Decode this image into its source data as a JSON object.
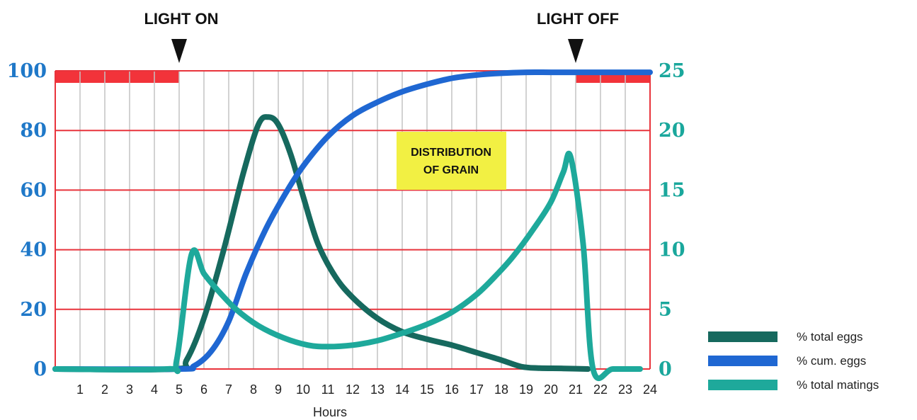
{
  "chart_data": {
    "type": "line",
    "title": "",
    "xlabel": "Hours",
    "ylabel_left": "",
    "ylabel_right": "",
    "x_range": [
      0,
      24
    ],
    "x_ticks": [
      "1",
      "2",
      "3",
      "4",
      "5",
      "6",
      "7",
      "8",
      "9",
      "10",
      "11",
      "12",
      "13",
      "14",
      "15",
      "16",
      "17",
      "18",
      "19",
      "20",
      "21",
      "22",
      "23",
      "24"
    ],
    "ylim_left": [
      0,
      100
    ],
    "yticks_left": [
      "0",
      "20",
      "40",
      "60",
      "80",
      "100"
    ],
    "ylim_right": [
      0,
      25
    ],
    "yticks_right": [
      "0",
      "5",
      "10",
      "15",
      "20",
      "25"
    ],
    "grid": true,
    "legend_position": "bottom-right",
    "markers": [
      {
        "label": "LIGHT ON",
        "x": 5
      },
      {
        "label": "LIGHT OFF",
        "x": 21
      }
    ],
    "dark_periods": [
      [
        0,
        5
      ],
      [
        21,
        24
      ]
    ],
    "annotation": {
      "lines": [
        "DISTRIBUTION",
        "OF GRAIN"
      ],
      "x_center": 15.3,
      "y_center": 68
    },
    "series": [
      {
        "name": "% total eggs",
        "color": "#16695e",
        "points": [
          [
            0,
            0
          ],
          [
            4.8,
            0
          ],
          [
            5.3,
            3
          ],
          [
            6,
            17
          ],
          [
            6.8,
            40
          ],
          [
            7.6,
            66
          ],
          [
            8.2,
            82
          ],
          [
            8.6,
            84.5
          ],
          [
            9,
            82
          ],
          [
            9.5,
            72
          ],
          [
            10,
            58
          ],
          [
            10.6,
            42
          ],
          [
            11.3,
            31
          ],
          [
            12,
            24
          ],
          [
            13,
            17
          ],
          [
            14,
            12.5
          ],
          [
            15,
            10
          ],
          [
            16,
            8
          ],
          [
            17,
            5.5
          ],
          [
            18,
            3
          ],
          [
            18.8,
            0.8
          ],
          [
            19.5,
            0.3
          ],
          [
            20.5,
            0.2
          ],
          [
            21.5,
            0
          ]
        ]
      },
      {
        "name": "% cum. eggs",
        "color": "#1f67d2",
        "points": [
          [
            0,
            0
          ],
          [
            5,
            0
          ],
          [
            5.6,
            1
          ],
          [
            6.3,
            6
          ],
          [
            7,
            16
          ],
          [
            7.7,
            32
          ],
          [
            8.5,
            47
          ],
          [
            9.3,
            59
          ],
          [
            10,
            68
          ],
          [
            11,
            78
          ],
          [
            12,
            85
          ],
          [
            13,
            89.5
          ],
          [
            14,
            93
          ],
          [
            15,
            95.5
          ],
          [
            16,
            97.5
          ],
          [
            17,
            98.6
          ],
          [
            18,
            99.2
          ],
          [
            19,
            99.5
          ],
          [
            20,
            99.5
          ],
          [
            21,
            99.5
          ],
          [
            22,
            99.5
          ],
          [
            24,
            99.5
          ]
        ]
      },
      {
        "name": "% total matings",
        "color": "#1ea99b",
        "points": [
          [
            0,
            0
          ],
          [
            4.5,
            0
          ],
          [
            4.9,
            3
          ],
          [
            5.5,
            38.5
          ],
          [
            6,
            32
          ],
          [
            6.6,
            26
          ],
          [
            7.3,
            20
          ],
          [
            8.2,
            14.5
          ],
          [
            9.2,
            10.5
          ],
          [
            10.2,
            8
          ],
          [
            11,
            7.5
          ],
          [
            12,
            8
          ],
          [
            13,
            9.5
          ],
          [
            14,
            12
          ],
          [
            15,
            15
          ],
          [
            16,
            19
          ],
          [
            17,
            25
          ],
          [
            17.8,
            31.5
          ],
          [
            18.5,
            38
          ],
          [
            19.3,
            47
          ],
          [
            20,
            56
          ],
          [
            20.5,
            66
          ],
          [
            20.8,
            71
          ],
          [
            21.3,
            42
          ],
          [
            21.7,
            0
          ],
          [
            22.5,
            0
          ],
          [
            23.6,
            0
          ]
        ]
      }
    ]
  }
}
